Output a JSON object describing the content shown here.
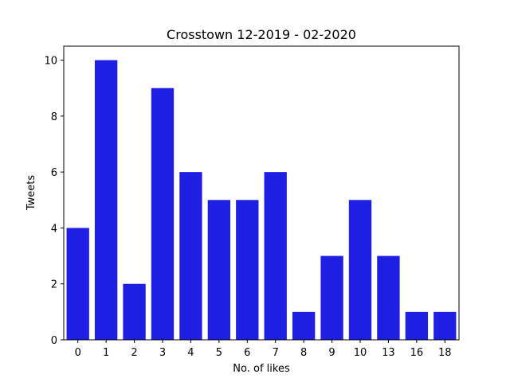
{
  "chart_data": {
    "type": "bar",
    "title": "Crosstown 12-2019 - 02-2020",
    "xlabel": "No. of likes",
    "ylabel": "Tweets",
    "categories": [
      "0",
      "1",
      "2",
      "3",
      "4",
      "5",
      "6",
      "7",
      "8",
      "9",
      "10",
      "13",
      "16",
      "18"
    ],
    "values": [
      4,
      10,
      2,
      9,
      6,
      5,
      5,
      6,
      1,
      3,
      5,
      3,
      1,
      1
    ],
    "ylim": [
      0,
      10.5
    ],
    "yticks": [
      0,
      2,
      4,
      6,
      8,
      10
    ],
    "grid": false,
    "legend": "none",
    "bar_color": "#1f1fe3"
  }
}
